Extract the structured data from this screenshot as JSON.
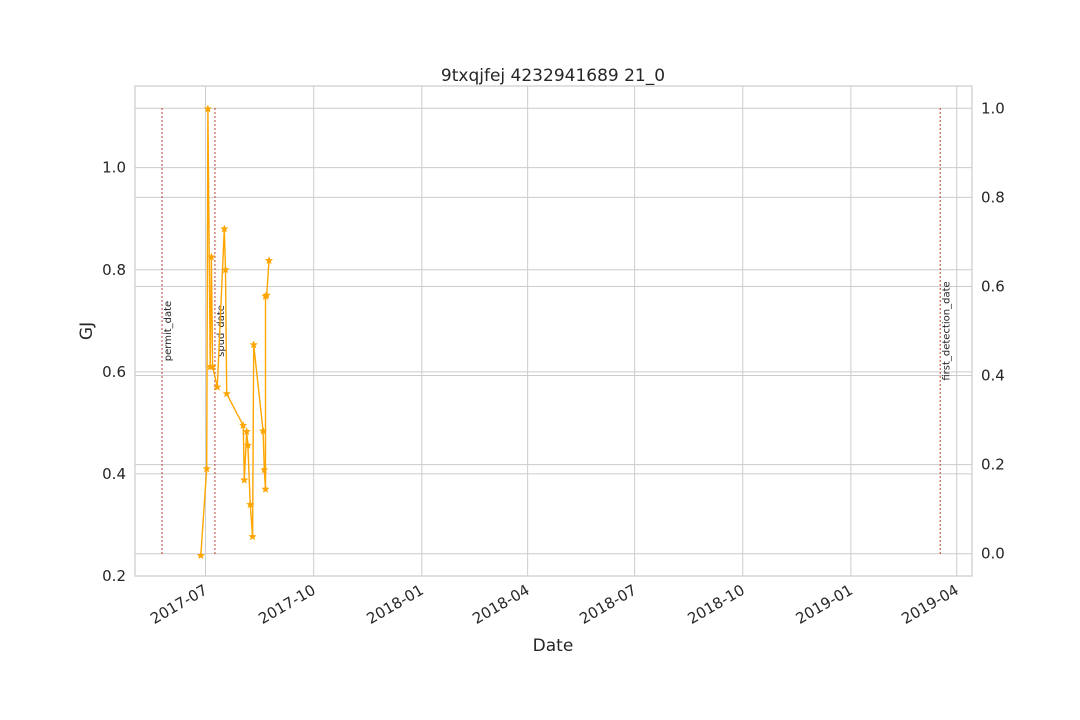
{
  "chart_data": {
    "type": "line",
    "title": "9txqjfej 4232941689 21_0",
    "xlabel": "Date",
    "ylabel": "GJ",
    "ylabel_color": "#1f77b4",
    "xlim": [
      "2017-05-02",
      "2019-04-14"
    ],
    "ylim": [
      0.2,
      1.16
    ],
    "y2lim": [
      -0.05,
      1.05
    ],
    "x_ticks": [
      "2017-07-01",
      "2017-10-01",
      "2018-01-01",
      "2018-04-01",
      "2018-07-01",
      "2018-10-01",
      "2019-01-01",
      "2019-04-01"
    ],
    "x_tick_labels": [
      "2017-07",
      "2017-10",
      "2018-01",
      "2018-04",
      "2018-07",
      "2018-10",
      "2019-01",
      "2019-04"
    ],
    "y_ticks": [
      0.2,
      0.4,
      0.6,
      0.8,
      1.0
    ],
    "y_tick_labels": [
      "0.2",
      "0.4",
      "0.6",
      "0.8",
      "1.0"
    ],
    "y2_ticks": [
      0.0,
      0.2,
      0.4,
      0.6,
      0.8,
      1.0
    ],
    "y2_tick_labels": [
      "0.0",
      "0.2",
      "0.4",
      "0.6",
      "0.8",
      "1.0"
    ],
    "grid": true,
    "series": [
      {
        "color": "#ffa500",
        "marker": "star",
        "x": [
          "2017-06-27",
          "2017-07-02",
          "2017-07-03",
          "2017-07-05",
          "2017-07-06",
          "2017-07-07",
          "2017-07-11",
          "2017-07-17",
          "2017-07-18",
          "2017-07-19",
          "2017-08-02",
          "2017-08-03",
          "2017-08-05",
          "2017-08-06",
          "2017-08-08",
          "2017-08-10",
          "2017-08-11",
          "2017-08-19",
          "2017-08-20",
          "2017-08-21",
          "2017-08-21",
          "2017-08-22",
          "2017-08-24"
        ],
        "values": [
          0.24,
          0.41,
          1.115,
          0.61,
          0.825,
          0.61,
          0.57,
          0.88,
          0.8,
          0.557,
          0.495,
          0.388,
          0.483,
          0.456,
          0.34,
          0.277,
          0.653,
          0.484,
          0.408,
          0.37,
          0.748,
          0.75,
          0.818
        ]
      }
    ],
    "event_lines": {
      "color": "#c0392b",
      "y2_range": [
        0.0,
        1.0
      ],
      "items": [
        {
          "date": "2017-05-25",
          "label": "permit_date"
        },
        {
          "date": "2017-07-09",
          "label": "spud_date"
        },
        {
          "date": "2019-03-18",
          "label": "first_detection_date"
        }
      ]
    }
  }
}
